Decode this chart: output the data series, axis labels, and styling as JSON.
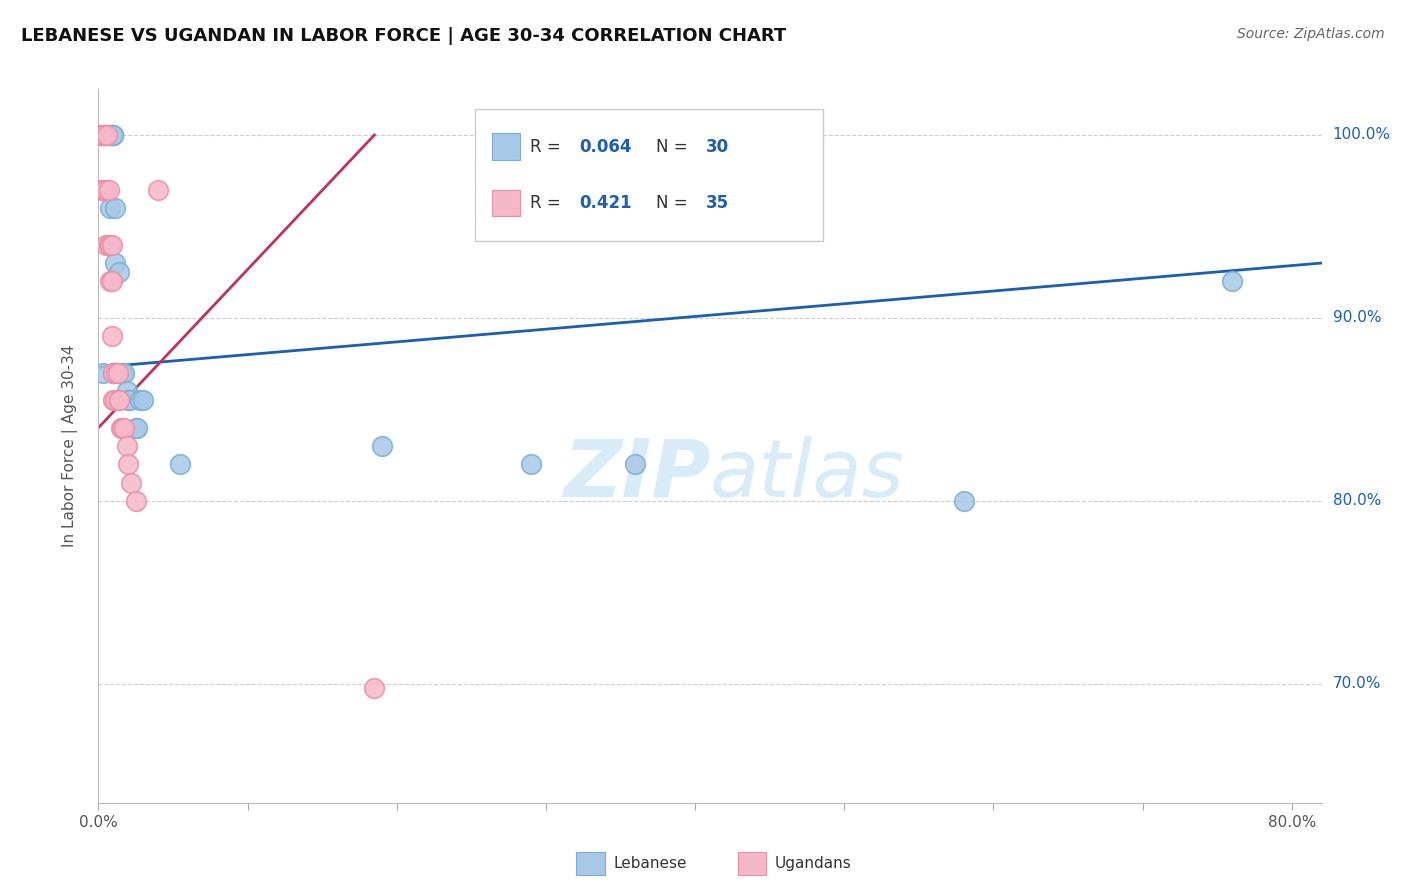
{
  "title": "LEBANESE VS UGANDAN IN LABOR FORCE | AGE 30-34 CORRELATION CHART",
  "source": "Source: ZipAtlas.com",
  "ylabel": "In Labor Force | Age 30-34",
  "xlim": [
    0.0,
    0.82
  ],
  "ylim": [
    0.635,
    1.025
  ],
  "xtick_positions": [
    0.0,
    0.1,
    0.2,
    0.3,
    0.4,
    0.5,
    0.6,
    0.7,
    0.8
  ],
  "xticklabels": [
    "0.0%",
    "",
    "",
    "",
    "",
    "",
    "",
    "",
    "80.0%"
  ],
  "ytick_positions": [
    0.7,
    0.8,
    0.9,
    1.0
  ],
  "ytick_labels": [
    "70.0%",
    "80.0%",
    "90.0%",
    "100.0%"
  ],
  "blue_color": "#a8c8e8",
  "blue_edge_color": "#7aadd4",
  "pink_color": "#f5b8c8",
  "pink_edge_color": "#e890a8",
  "blue_line_color": "#1a5fb4",
  "pink_line_color": "#c03060",
  "watermark_color": "#d8ecf8",
  "blue_x": [
    0.003,
    0.006,
    0.007,
    0.007,
    0.008,
    0.009,
    0.009,
    0.01,
    0.01,
    0.011,
    0.011,
    0.012,
    0.013,
    0.013,
    0.014,
    0.016,
    0.017,
    0.019,
    0.02,
    0.021,
    0.025,
    0.026,
    0.028,
    0.03,
    0.055,
    0.19,
    0.29,
    0.36,
    0.58,
    0.76
  ],
  "blue_y": [
    0.87,
    1.0,
    1.0,
    1.0,
    0.96,
    1.0,
    1.0,
    1.0,
    1.0,
    0.96,
    0.93,
    0.87,
    0.87,
    0.87,
    0.925,
    0.87,
    0.87,
    0.86,
    0.855,
    0.855,
    0.84,
    0.84,
    0.855,
    0.855,
    0.82,
    0.83,
    0.82,
    0.82,
    0.8,
    0.92
  ],
  "pink_x": [
    0.001,
    0.001,
    0.002,
    0.002,
    0.003,
    0.003,
    0.004,
    0.004,
    0.005,
    0.005,
    0.006,
    0.007,
    0.007,
    0.008,
    0.008,
    0.009,
    0.009,
    0.009,
    0.01,
    0.01,
    0.01,
    0.011,
    0.012,
    0.013,
    0.014,
    0.014,
    0.015,
    0.016,
    0.017,
    0.019,
    0.02,
    0.022,
    0.025,
    0.04,
    0.185
  ],
  "pink_y": [
    1.0,
    1.0,
    1.0,
    0.97,
    1.0,
    0.97,
    1.0,
    0.97,
    0.97,
    0.94,
    1.0,
    0.97,
    0.94,
    0.94,
    0.92,
    0.94,
    0.92,
    0.89,
    0.87,
    0.87,
    0.855,
    0.855,
    0.87,
    0.87,
    0.855,
    0.855,
    0.84,
    0.84,
    0.84,
    0.83,
    0.82,
    0.81,
    0.8,
    0.97,
    0.698
  ],
  "blue_line_x0": 0.0,
  "blue_line_x1": 0.82,
  "blue_line_y0": 0.873,
  "blue_line_y1": 0.93,
  "pink_line_x0": 0.0,
  "pink_line_x1": 0.185,
  "pink_line_y0": 0.84,
  "pink_line_y1": 1.0,
  "legend_r_blue": "0.064",
  "legend_n_blue": "30",
  "legend_r_pink": "0.421",
  "legend_n_pink": "35"
}
